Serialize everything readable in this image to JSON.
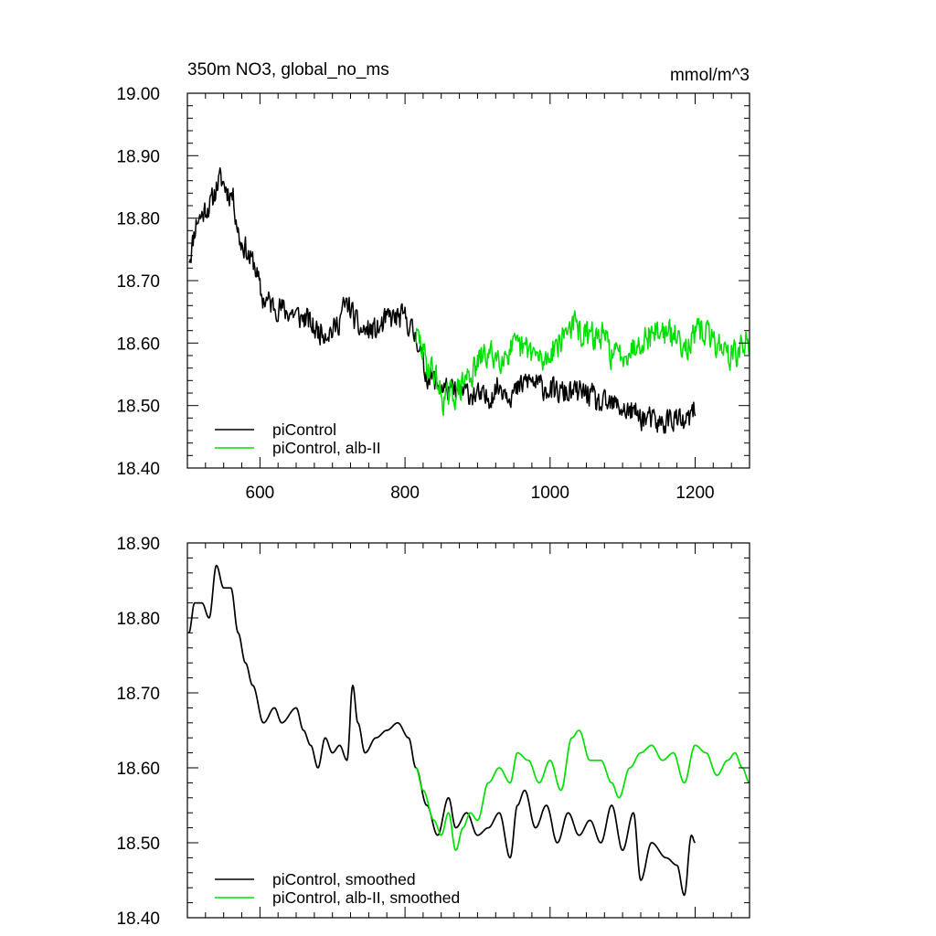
{
  "figure": {
    "title_left": "350m NO3, global_no_ms",
    "title_right": "mmol/m^3"
  },
  "colors": {
    "picontrol": "#000000",
    "albII": "#00e000",
    "axis": "#000000"
  },
  "chart_data": [
    {
      "type": "line",
      "xlim": [
        500,
        1275
      ],
      "ylim": [
        18.4,
        19.0
      ],
      "xticks": [
        600,
        800,
        1000,
        1200
      ],
      "xtick_labels": [
        "600",
        "800",
        "1000",
        "1200"
      ],
      "yticks": [
        18.4,
        18.5,
        18.6,
        18.7,
        18.8,
        18.9,
        19.0
      ],
      "ytick_labels": [
        "18.40",
        "18.50",
        "18.60",
        "18.70",
        "18.80",
        "18.90",
        "19.00"
      ],
      "legend_placement": "bottom-left",
      "series": [
        {
          "name": "piControl",
          "color": "#000000",
          "noise": 0.028,
          "seed": 11,
          "anchors": [
            [
              502,
              18.74
            ],
            [
              515,
              18.8
            ],
            [
              530,
              18.82
            ],
            [
              545,
              18.86
            ],
            [
              560,
              18.84
            ],
            [
              575,
              18.76
            ],
            [
              590,
              18.73
            ],
            [
              605,
              18.67
            ],
            [
              620,
              18.66
            ],
            [
              640,
              18.65
            ],
            [
              660,
              18.64
            ],
            [
              680,
              18.62
            ],
            [
              700,
              18.62
            ],
            [
              720,
              18.66
            ],
            [
              740,
              18.62
            ],
            [
              760,
              18.62
            ],
            [
              780,
              18.64
            ],
            [
              800,
              18.64
            ],
            [
              815,
              18.61
            ],
            [
              830,
              18.55
            ],
            [
              850,
              18.53
            ],
            [
              870,
              18.52
            ],
            [
              890,
              18.52
            ],
            [
              910,
              18.51
            ],
            [
              930,
              18.53
            ],
            [
              950,
              18.52
            ],
            [
              970,
              18.54
            ],
            [
              990,
              18.53
            ],
            [
              1010,
              18.52
            ],
            [
              1030,
              18.52
            ],
            [
              1050,
              18.52
            ],
            [
              1070,
              18.5
            ],
            [
              1090,
              18.5
            ],
            [
              1110,
              18.49
            ],
            [
              1130,
              18.48
            ],
            [
              1150,
              18.47
            ],
            [
              1170,
              18.48
            ],
            [
              1185,
              18.47
            ],
            [
              1200,
              18.49
            ]
          ]
        },
        {
          "name": "piControl, alb-II",
          "color": "#00e000",
          "noise": 0.032,
          "seed": 29,
          "anchors": [
            [
              815,
              18.61
            ],
            [
              835,
              18.56
            ],
            [
              855,
              18.51
            ],
            [
              870,
              18.52
            ],
            [
              890,
              18.55
            ],
            [
              910,
              18.58
            ],
            [
              930,
              18.58
            ],
            [
              950,
              18.59
            ],
            [
              970,
              18.59
            ],
            [
              990,
              18.57
            ],
            [
              1010,
              18.6
            ],
            [
              1030,
              18.63
            ],
            [
              1050,
              18.61
            ],
            [
              1070,
              18.61
            ],
            [
              1090,
              18.58
            ],
            [
              1110,
              18.59
            ],
            [
              1130,
              18.61
            ],
            [
              1150,
              18.62
            ],
            [
              1170,
              18.61
            ],
            [
              1190,
              18.6
            ],
            [
              1210,
              18.62
            ],
            [
              1230,
              18.6
            ],
            [
              1250,
              18.58
            ],
            [
              1275,
              18.6
            ]
          ]
        }
      ]
    },
    {
      "type": "line",
      "xlim": [
        500,
        1275
      ],
      "ylim": [
        18.4,
        18.9
      ],
      "xticks": [
        600,
        800,
        1000,
        1200
      ],
      "yticks": [
        18.4,
        18.5,
        18.6,
        18.7,
        18.8,
        18.9
      ],
      "ytick_labels": [
        "18.40",
        "18.50",
        "18.60",
        "18.70",
        "18.80",
        "18.90"
      ],
      "legend_placement": "bottom-left",
      "series": [
        {
          "name": "piControl, smoothed",
          "color": "#000000",
          "noise": 0.0,
          "seed": 0,
          "anchors": [
            [
              502,
              18.78
            ],
            [
              510,
              18.82
            ],
            [
              520,
              18.82
            ],
            [
              530,
              18.8
            ],
            [
              540,
              18.87
            ],
            [
              550,
              18.84
            ],
            [
              560,
              18.84
            ],
            [
              570,
              18.78
            ],
            [
              580,
              18.74
            ],
            [
              590,
              18.71
            ],
            [
              605,
              18.66
            ],
            [
              620,
              18.68
            ],
            [
              630,
              18.66
            ],
            [
              650,
              18.68
            ],
            [
              660,
              18.65
            ],
            [
              670,
              18.63
            ],
            [
              680,
              18.6
            ],
            [
              690,
              18.64
            ],
            [
              700,
              18.62
            ],
            [
              710,
              18.63
            ],
            [
              720,
              18.61
            ],
            [
              728,
              18.71
            ],
            [
              735,
              18.66
            ],
            [
              745,
              18.62
            ],
            [
              760,
              18.64
            ],
            [
              775,
              18.65
            ],
            [
              790,
              18.66
            ],
            [
              805,
              18.64
            ],
            [
              815,
              18.6
            ],
            [
              830,
              18.55
            ],
            [
              845,
              18.51
            ],
            [
              860,
              18.56
            ],
            [
              870,
              18.52
            ],
            [
              885,
              18.54
            ],
            [
              900,
              18.51
            ],
            [
              915,
              18.52
            ],
            [
              930,
              18.54
            ],
            [
              945,
              18.48
            ],
            [
              955,
              18.55
            ],
            [
              965,
              18.57
            ],
            [
              980,
              18.52
            ],
            [
              995,
              18.55
            ],
            [
              1010,
              18.5
            ],
            [
              1025,
              18.54
            ],
            [
              1040,
              18.51
            ],
            [
              1055,
              18.53
            ],
            [
              1070,
              18.5
            ],
            [
              1085,
              18.55
            ],
            [
              1100,
              18.49
            ],
            [
              1115,
              18.54
            ],
            [
              1125,
              18.45
            ],
            [
              1140,
              18.5
            ],
            [
              1160,
              18.48
            ],
            [
              1175,
              18.47
            ],
            [
              1185,
              18.43
            ],
            [
              1195,
              18.51
            ],
            [
              1200,
              18.5
            ]
          ]
        },
        {
          "name": "piControl, alb-II, smoothed",
          "color": "#00e000",
          "noise": 0.0,
          "seed": 0,
          "anchors": [
            [
              815,
              18.6
            ],
            [
              825,
              18.57
            ],
            [
              840,
              18.53
            ],
            [
              850,
              18.51
            ],
            [
              860,
              18.54
            ],
            [
              870,
              18.49
            ],
            [
              880,
              18.52
            ],
            [
              890,
              18.54
            ],
            [
              900,
              18.53
            ],
            [
              915,
              18.58
            ],
            [
              930,
              18.6
            ],
            [
              945,
              18.58
            ],
            [
              955,
              18.62
            ],
            [
              970,
              18.61
            ],
            [
              985,
              18.58
            ],
            [
              1000,
              18.61
            ],
            [
              1015,
              18.57
            ],
            [
              1030,
              18.64
            ],
            [
              1040,
              18.65
            ],
            [
              1055,
              18.61
            ],
            [
              1070,
              18.61
            ],
            [
              1085,
              18.58
            ],
            [
              1095,
              18.56
            ],
            [
              1110,
              18.6
            ],
            [
              1125,
              18.62
            ],
            [
              1140,
              18.63
            ],
            [
              1155,
              18.61
            ],
            [
              1170,
              18.62
            ],
            [
              1185,
              18.58
            ],
            [
              1200,
              18.63
            ],
            [
              1215,
              18.62
            ],
            [
              1230,
              18.59
            ],
            [
              1245,
              18.61
            ],
            [
              1255,
              18.62
            ],
            [
              1265,
              18.6
            ],
            [
              1275,
              18.58
            ]
          ]
        }
      ]
    }
  ]
}
